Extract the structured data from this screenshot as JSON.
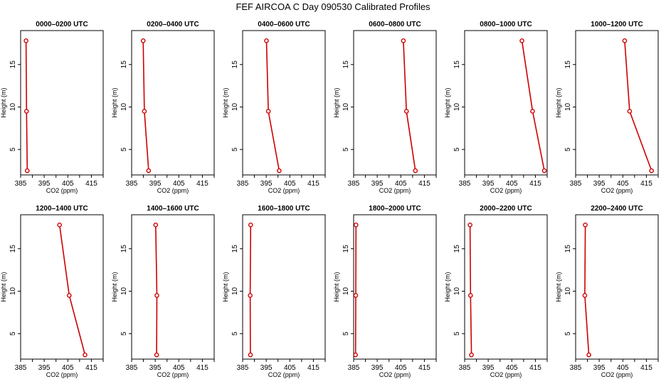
{
  "title": "FEF AIRCOA C  Day 090530  Calibrated Profiles",
  "colors": {
    "line": "#cc0000",
    "axis": "#000000"
  },
  "chart_data": [
    {
      "type": "line",
      "title": "0000–0200 UTC",
      "xlabel": "CO2 (ppm)",
      "ylabel": "Height (m)",
      "xlim": [
        385,
        420
      ],
      "ylim": [
        2,
        19
      ],
      "xticks": [
        385,
        395,
        405,
        415
      ],
      "yticks": [
        5,
        10,
        15
      ],
      "x": [
        387.8,
        387.5,
        387.3
      ],
      "y": [
        2.5,
        9.5,
        17.8
      ]
    },
    {
      "type": "line",
      "title": "0200–0400 UTC",
      "xlabel": "CO2 (ppm)",
      "ylabel": "Height (m)",
      "xlim": [
        385,
        420
      ],
      "ylim": [
        2,
        19
      ],
      "xticks": [
        385,
        395,
        405,
        415
      ],
      "yticks": [
        5,
        10,
        15
      ],
      "x": [
        392.2,
        390.4,
        389.9
      ],
      "y": [
        2.5,
        9.5,
        17.8
      ]
    },
    {
      "type": "line",
      "title": "0400–0600 UTC",
      "xlabel": "CO2 (ppm)",
      "ylabel": "Height (m)",
      "xlim": [
        385,
        420
      ],
      "ylim": [
        2,
        19
      ],
      "xticks": [
        385,
        395,
        405,
        415
      ],
      "yticks": [
        5,
        10,
        15
      ],
      "x": [
        400.5,
        395.9,
        395.1
      ],
      "y": [
        2.5,
        9.5,
        17.8
      ]
    },
    {
      "type": "line",
      "title": "0600–0800 UTC",
      "xlabel": "CO2 (ppm)",
      "ylabel": "Height (m)",
      "xlim": [
        385,
        420
      ],
      "ylim": [
        2,
        19
      ],
      "xticks": [
        385,
        395,
        405,
        415
      ],
      "yticks": [
        5,
        10,
        15
      ],
      "x": [
        411.2,
        407.4,
        406.1
      ],
      "y": [
        2.5,
        9.5,
        17.8
      ]
    },
    {
      "type": "line",
      "title": "0800–1000 UTC",
      "xlabel": "CO2 (ppm)",
      "ylabel": "Height (m)",
      "xlim": [
        385,
        420
      ],
      "ylim": [
        2,
        19
      ],
      "xticks": [
        385,
        395,
        405,
        415
      ],
      "yticks": [
        5,
        10,
        15
      ],
      "x": [
        418.8,
        413.8,
        409.3
      ],
      "y": [
        2.5,
        9.5,
        17.8
      ]
    },
    {
      "type": "line",
      "title": "1000–1200 UTC",
      "xlabel": "CO2 (ppm)",
      "ylabel": "Height (m)",
      "xlim": [
        385,
        420
      ],
      "ylim": [
        2,
        19
      ],
      "xticks": [
        385,
        395,
        405,
        415
      ],
      "yticks": [
        5,
        10,
        15
      ],
      "x": [
        417.2,
        407.9,
        405.8
      ],
      "y": [
        2.5,
        9.5,
        17.8
      ]
    },
    {
      "type": "line",
      "title": "1200–1400 UTC",
      "xlabel": "CO2 (ppm)",
      "ylabel": "Height (m)",
      "xlim": [
        385,
        420
      ],
      "ylim": [
        2,
        19
      ],
      "xticks": [
        385,
        395,
        405,
        415
      ],
      "yticks": [
        5,
        10,
        15
      ],
      "x": [
        412.3,
        405.6,
        401.5
      ],
      "y": [
        2.5,
        9.5,
        17.8
      ]
    },
    {
      "type": "line",
      "title": "1400–1600 UTC",
      "xlabel": "CO2 (ppm)",
      "ylabel": "Height (m)",
      "xlim": [
        385,
        420
      ],
      "ylim": [
        2,
        19
      ],
      "xticks": [
        385,
        395,
        405,
        415
      ],
      "yticks": [
        5,
        10,
        15
      ],
      "x": [
        395.6,
        395.7,
        395.2
      ],
      "y": [
        2.5,
        9.5,
        17.8
      ]
    },
    {
      "type": "line",
      "title": "1600–1800 UTC",
      "xlabel": "CO2 (ppm)",
      "ylabel": "Height (m)",
      "xlim": [
        385,
        420
      ],
      "ylim": [
        2,
        19
      ],
      "xticks": [
        385,
        395,
        405,
        415
      ],
      "yticks": [
        5,
        10,
        15
      ],
      "x": [
        388.3,
        388.2,
        388.4
      ],
      "y": [
        2.5,
        9.5,
        17.8
      ]
    },
    {
      "type": "line",
      "title": "1800–2000 UTC",
      "xlabel": "CO2 (ppm)",
      "ylabel": "Height (m)",
      "xlim": [
        385,
        420
      ],
      "ylim": [
        2,
        19
      ],
      "xticks": [
        385,
        395,
        405,
        415
      ],
      "yticks": [
        5,
        10,
        15
      ],
      "x": [
        385.8,
        385.9,
        386.0
      ],
      "y": [
        2.5,
        9.5,
        17.8
      ]
    },
    {
      "type": "line",
      "title": "2000–2200 UTC",
      "xlabel": "CO2 (ppm)",
      "ylabel": "Height (m)",
      "xlim": [
        385,
        420
      ],
      "ylim": [
        2,
        19
      ],
      "xticks": [
        385,
        395,
        405,
        415
      ],
      "yticks": [
        5,
        10,
        15
      ],
      "x": [
        387.9,
        387.5,
        387.3
      ],
      "y": [
        2.5,
        9.5,
        17.8
      ]
    },
    {
      "type": "line",
      "title": "2200–2400 UTC",
      "xlabel": "CO2 (ppm)",
      "ylabel": "Height (m)",
      "xlim": [
        385,
        420
      ],
      "ylim": [
        2,
        19
      ],
      "xticks": [
        385,
        395,
        405,
        415
      ],
      "yticks": [
        5,
        10,
        15
      ],
      "x": [
        390.6,
        388.9,
        389.1
      ],
      "y": [
        2.5,
        9.5,
        17.8
      ]
    }
  ]
}
